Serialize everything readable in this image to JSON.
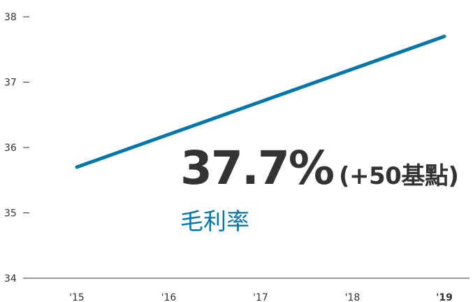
{
  "chart_data": {
    "type": "line",
    "categories": [
      "'15",
      "'16",
      "'17",
      "'18",
      "'19"
    ],
    "series": [
      {
        "values": [
          35.7,
          36.2,
          36.7,
          37.2,
          37.7
        ]
      }
    ],
    "ylim": [
      34,
      38
    ],
    "yticks": [
      "34",
      "35",
      "36",
      "37",
      "38"
    ],
    "bold_category": "'19",
    "grid": false,
    "line_color": "#0077a8",
    "headline": {
      "value": "37.7%",
      "change": "(+50基點)"
    },
    "label": "毛利率"
  }
}
